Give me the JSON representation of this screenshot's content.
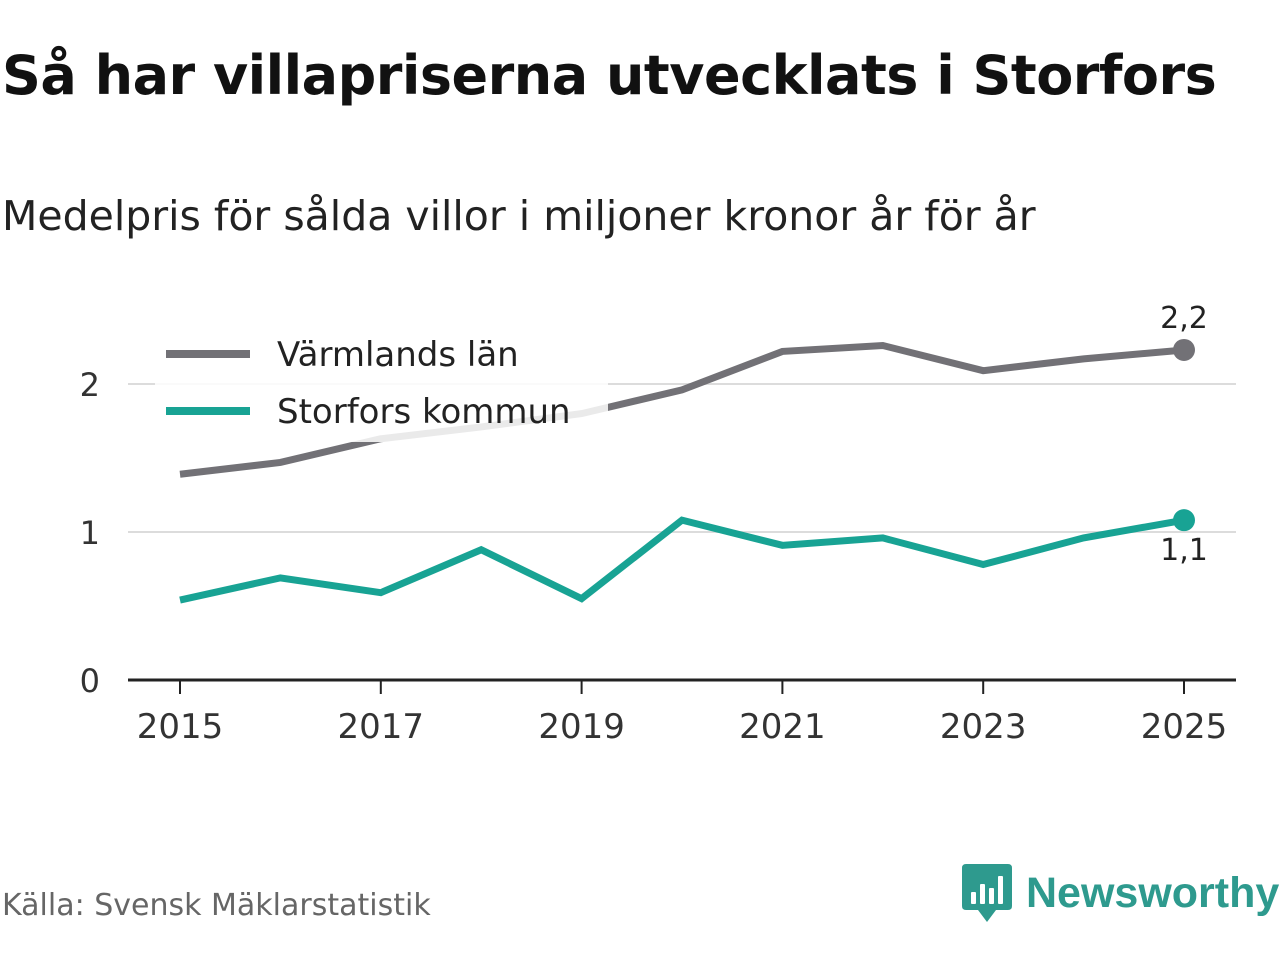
{
  "title": "Så har villapriserna utvecklats i Storfors",
  "subtitle": "Medelpris för sålda villor i miljoner kronor år för år",
  "source": "Källa: Svensk Mäklarstatistik",
  "brand": {
    "name": "Newsworthy",
    "icon": "newsworthy-logo-icon",
    "color": "#2e9a8e"
  },
  "chart_data": {
    "type": "line",
    "x": [
      2015,
      2016,
      2017,
      2018,
      2019,
      2020,
      2021,
      2022,
      2023,
      2024,
      2025
    ],
    "xticks": [
      "2015",
      "2017",
      "2019",
      "2021",
      "2023",
      "2025"
    ],
    "xtick_values": [
      2015,
      2017,
      2019,
      2021,
      2023,
      2025
    ],
    "yticks": [
      "0",
      "1",
      "2"
    ],
    "ytick_values": [
      0,
      1,
      2
    ],
    "ylim": [
      0,
      2.4
    ],
    "xlim": [
      2015,
      2025
    ],
    "grid": true,
    "legend": "top-left",
    "series": [
      {
        "name": "Värmlands län",
        "color": "#727176",
        "values": [
          1.39,
          1.47,
          1.63,
          1.71,
          1.8,
          1.96,
          2.22,
          2.26,
          2.09,
          2.17,
          2.23
        ],
        "end_label": "2,2",
        "end_label_position": "above"
      },
      {
        "name": "Storfors kommun",
        "color": "#18a394",
        "values": [
          0.54,
          0.69,
          0.59,
          0.88,
          0.55,
          1.08,
          0.91,
          0.96,
          0.78,
          0.96,
          1.08
        ],
        "end_label": "1,1",
        "end_label_position": "below"
      }
    ]
  }
}
